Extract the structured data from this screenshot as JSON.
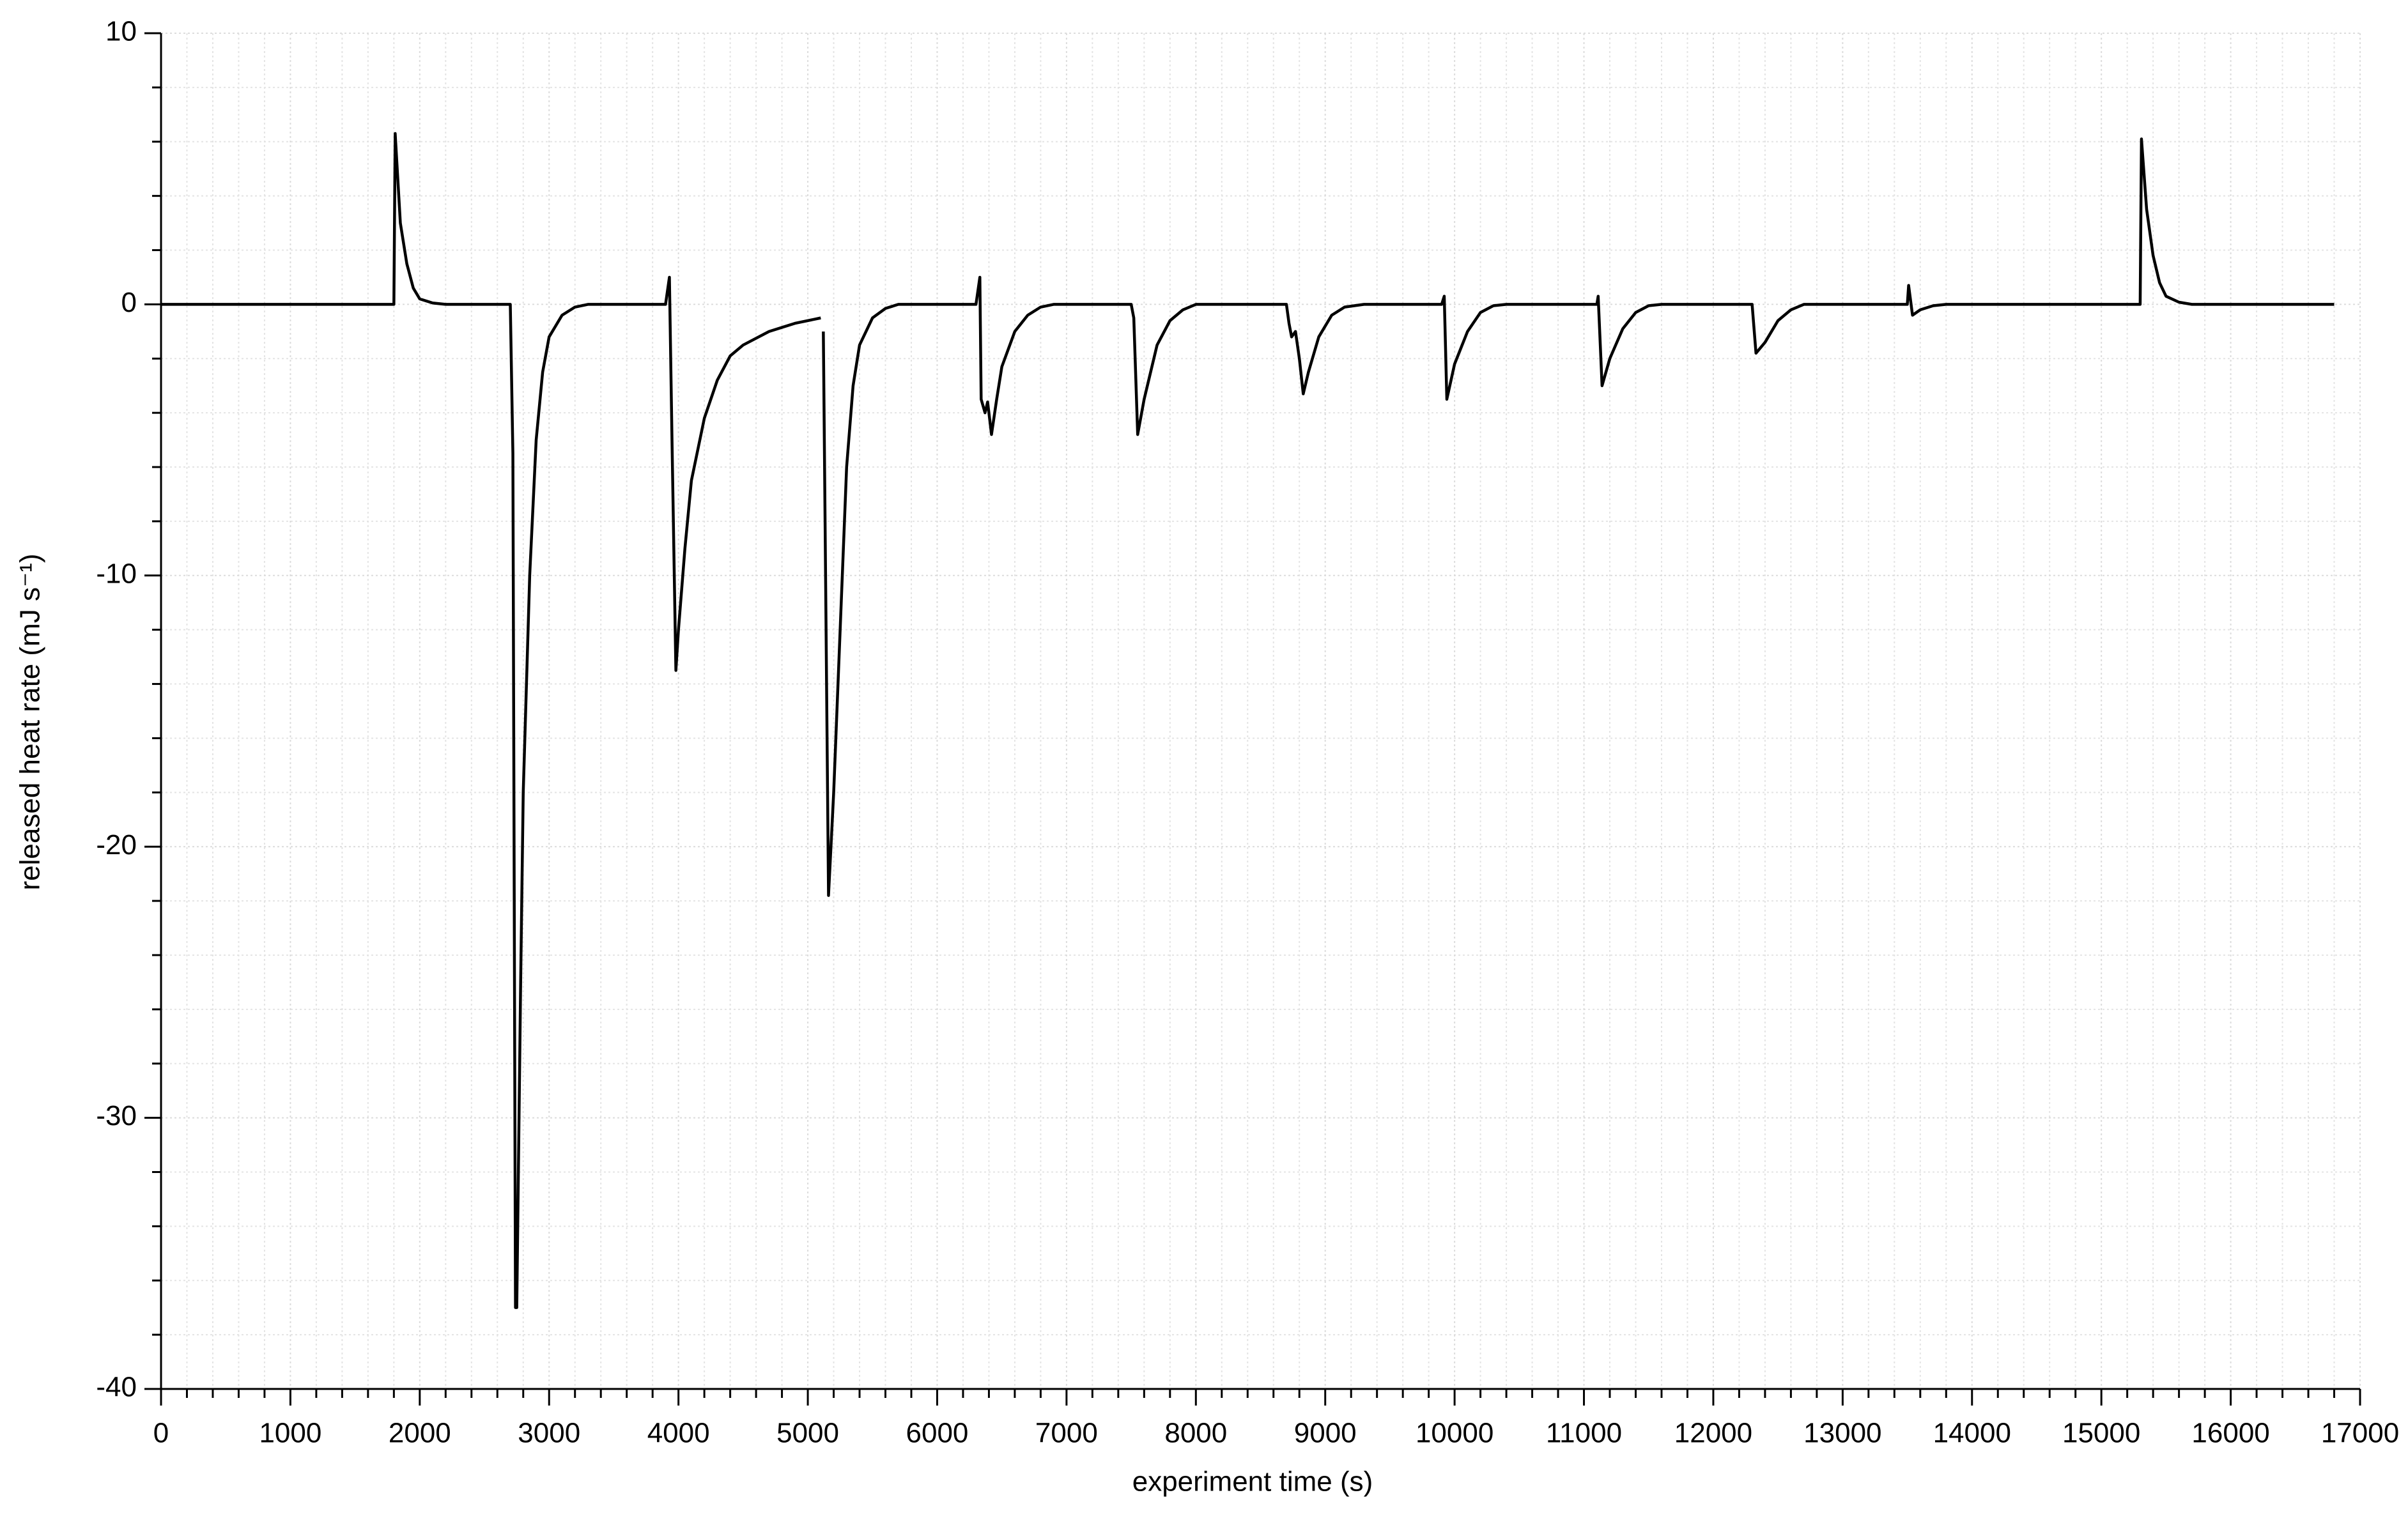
{
  "chart_data": {
    "type": "line",
    "xlabel": "experiment time (s)",
    "ylabel": "released heat rate (mJ s⁻¹)",
    "color": "#000000",
    "grid": true,
    "xlim": [
      0,
      17000
    ],
    "ylim": [
      -40,
      10
    ],
    "xticks": [
      0,
      1000,
      2000,
      3000,
      4000,
      5000,
      6000,
      7000,
      8000,
      9000,
      10000,
      11000,
      12000,
      13000,
      14000,
      15000,
      16000,
      17000
    ],
    "yticks": [
      10,
      0,
      -10,
      -20,
      -30,
      -40
    ],
    "x": [
      0,
      1800,
      1810,
      1850,
      1900,
      1950,
      2000,
      2100,
      2200,
      2700,
      2720,
      2740,
      2750,
      2780,
      2800,
      2850,
      2900,
      2950,
      3000,
      3100,
      3200,
      3300,
      3900,
      3930,
      3950,
      3980,
      4000,
      4050,
      4100,
      4200,
      4300,
      4400,
      4500,
      4700,
      4900,
      5100,
      5110,
      5120,
      5160,
      5200,
      5250,
      5300,
      5350,
      5400,
      5500,
      5600,
      5700,
      6300,
      6330,
      6340,
      6370,
      6390,
      6420,
      6460,
      6500,
      6600,
      6700,
      6800,
      6900,
      7500,
      7520,
      7550,
      7600,
      7700,
      7800,
      7900,
      8000,
      8700,
      8720,
      8740,
      8770,
      8800,
      8830,
      8870,
      8950,
      9050,
      9150,
      9300,
      9900,
      9920,
      9940,
      10000,
      10100,
      10200,
      10300,
      10400,
      11100,
      11110,
      11140,
      11200,
      11300,
      11400,
      11500,
      11600,
      12300,
      12330,
      12400,
      12500,
      12600,
      12700,
      13500,
      13510,
      13540,
      13600,
      13700,
      13800,
      15300,
      15310,
      15350,
      15400,
      15450,
      15500,
      15600,
      15700,
      16800
    ],
    "values": [
      0,
      0,
      6.3,
      3,
      1.5,
      0.6,
      0.2,
      0.05,
      0,
      0,
      -5.5,
      -37,
      -37,
      -25,
      -18,
      -10,
      -5,
      -2.5,
      -1.2,
      -0.4,
      -0.1,
      0,
      0,
      1,
      -5,
      -13.5,
      -12,
      -9,
      -6.5,
      -4.2,
      -2.8,
      -1.9,
      -1.5,
      -1.0,
      -0.7,
      -0.5,
      null,
      -1,
      -21.8,
      -18,
      -12,
      -6,
      -3,
      -1.5,
      -0.5,
      -0.15,
      0,
      0,
      1,
      -3.5,
      -4,
      -3.6,
      -4.8,
      -3.5,
      -2.3,
      -1,
      -0.4,
      -0.1,
      0,
      0,
      -0.5,
      -4.8,
      -3.5,
      -1.5,
      -0.6,
      -0.2,
      0,
      0,
      -0.7,
      -1.2,
      -1.0,
      -2.0,
      -3.3,
      -2.5,
      -1.2,
      -0.4,
      -0.1,
      0,
      0,
      0.3,
      -3.5,
      -2.2,
      -1.0,
      -0.3,
      -0.05,
      0,
      0,
      0.3,
      -3.0,
      -2.0,
      -0.9,
      -0.3,
      -0.05,
      0,
      0,
      -1.8,
      -1.4,
      -0.6,
      -0.2,
      0,
      0,
      0.7,
      -0.4,
      -0.2,
      -0.05,
      0,
      0,
      6.1,
      3.5,
      1.8,
      0.8,
      0.3,
      0.08,
      0,
      0
    ]
  }
}
